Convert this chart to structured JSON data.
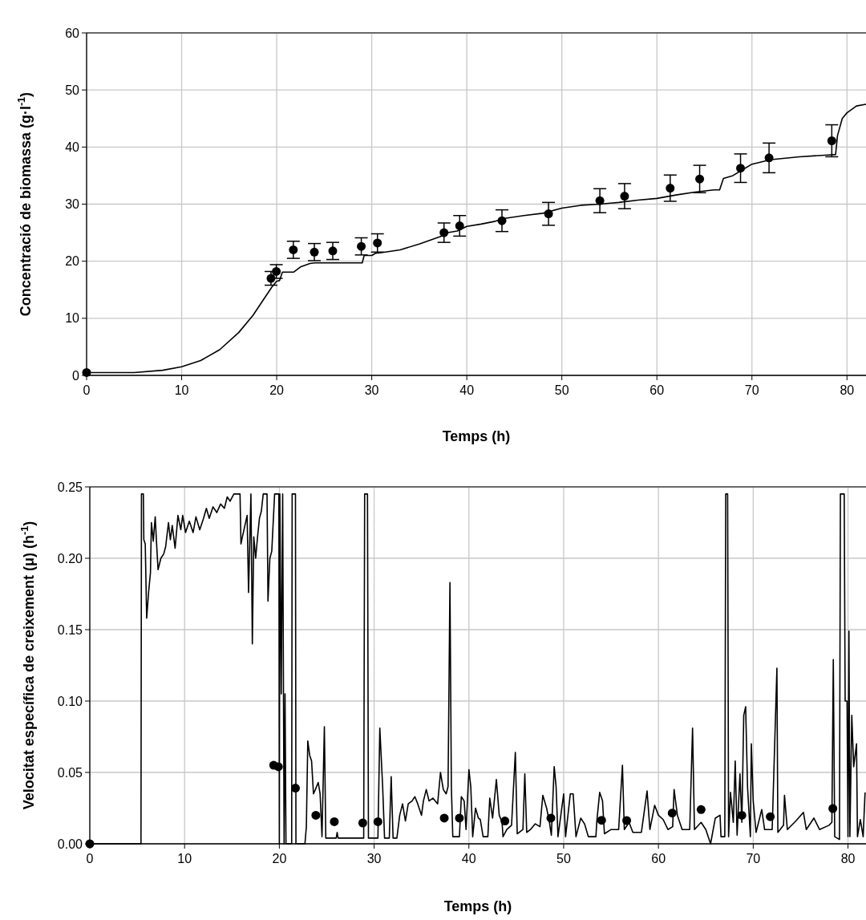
{
  "chart_data": [
    {
      "type": "line",
      "xlabel": "Temps (h)",
      "ylabel": "Concentració de biomassa (g·l$^{-1}$)",
      "xlim": [
        0,
        82
      ],
      "xticks": [
        0,
        10,
        20,
        30,
        40,
        50,
        60,
        70,
        80
      ],
      "ylim": [
        0,
        60
      ],
      "yticks": [
        0,
        10,
        20,
        30,
        40,
        50,
        60
      ],
      "grid": true,
      "series": [
        {
          "type": "line",
          "color": "#000000",
          "x": [
            0,
            5,
            8,
            10,
            12,
            14,
            16,
            17.5,
            18.5,
            19.5,
            20,
            20.3,
            20.6,
            21.8,
            22.5,
            23.5,
            24,
            29,
            29.2,
            30,
            30.4,
            31,
            33,
            35,
            37.5,
            38,
            39,
            40,
            41.5,
            43,
            44,
            46,
            48,
            50,
            52,
            54,
            56,
            58,
            60,
            62,
            64,
            66,
            66.6,
            67,
            68,
            69,
            70,
            72,
            75,
            78,
            78.8,
            79,
            79.5,
            80,
            81,
            82
          ],
          "values": [
            0.5,
            0.5,
            0.9,
            1.5,
            2.6,
            4.5,
            7.5,
            10.5,
            13,
            15.5,
            16.5,
            16.6,
            18.1,
            18.1,
            19,
            19.6,
            19.7,
            19.7,
            21,
            21,
            21.4,
            21.5,
            22,
            23,
            24.5,
            25,
            25.3,
            26.1,
            26.5,
            27,
            27.5,
            28,
            28.4,
            29.3,
            29.8,
            30,
            30.3,
            30.7,
            31,
            31.6,
            32.1,
            32.5,
            32.5,
            34.5,
            35,
            36,
            37,
            37.8,
            38.3,
            38.6,
            38.7,
            42,
            45,
            46,
            47.2,
            47.5
          ]
        },
        {
          "type": "scatter",
          "color": "#000000",
          "marker": "circle",
          "x": [
            0,
            19.4,
            19.96,
            21.75,
            23.96,
            25.9,
            28.9,
            30.6,
            37.6,
            39.25,
            43.7,
            48.6,
            54,
            56.6,
            61.4,
            64.5,
            68.8,
            71.8,
            78.4
          ],
          "values": [
            0.5,
            17,
            18.2,
            22,
            21.6,
            21.8,
            22.6,
            23.2,
            25,
            26.2,
            27.1,
            28.3,
            30.6,
            31.4,
            32.8,
            34.4,
            36.3,
            38.1,
            41.1
          ],
          "errors": [
            null,
            1.2,
            1.2,
            1.5,
            1.5,
            1.5,
            1.5,
            1.6,
            1.7,
            1.8,
            1.9,
            2,
            2.1,
            2.2,
            2.3,
            2.4,
            2.5,
            2.6,
            2.8
          ]
        }
      ]
    },
    {
      "type": "line",
      "xlabel": "Temps (h)",
      "ylabel": "Velocitat específica de creixement (μ) (h$^{-1}$)",
      "xlim": [
        0,
        81.9
      ],
      "xticks": [
        0,
        10,
        20,
        30,
        40,
        50,
        60,
        70,
        80
      ],
      "ylim": [
        0,
        0.25
      ],
      "yticks": [
        {
          "value": 0,
          "label": "0.00"
        },
        {
          "value": 0.05,
          "label": "0.05"
        },
        {
          "value": 0.1,
          "label": "0.10"
        },
        {
          "value": 0.15,
          "label": "0.15"
        },
        {
          "value": 0.2,
          "label": "0.20"
        },
        {
          "value": 0.25,
          "label": "0.25"
        }
      ],
      "grid": true,
      "series": [
        {
          "type": "line",
          "color": "#000000",
          "x": [
            0,
            5.4,
            5.45,
            5.65,
            5.7,
            5.85,
            6,
            6.2,
            6.4,
            6.5,
            6.7,
            6.9,
            7.05,
            7.2,
            7.5,
            7.8,
            8,
            8.3,
            8.5,
            8.7,
            9,
            9.3,
            9.6,
            9.8,
            10.1,
            10.5,
            10.9,
            11.2,
            11.6,
            12,
            12.3,
            12.6,
            13,
            13.4,
            13.8,
            14.2,
            14.5,
            14.8,
            15.2,
            15.85,
            15.95,
            16.1,
            16.6,
            16.75,
            17,
            17.15,
            17.3,
            17.5,
            17.7,
            17.9,
            18.1,
            18.3,
            18.7,
            18.8,
            19,
            19.2,
            19.5,
            19.95,
            20,
            20.05,
            20.2,
            20.35,
            20.5,
            20.6,
            20.7,
            21.3,
            21.35,
            21.7,
            21.75,
            22.7,
            22.85,
            23,
            23.2,
            23.4,
            23.6,
            23.8,
            24.1,
            24.3,
            24.5,
            24.75,
            24.9,
            26,
            26.1,
            26.2,
            28.9,
            29,
            29.3,
            29.4,
            30.4,
            30.6,
            30.9,
            31.1,
            31.6,
            31.8,
            32,
            32.4,
            32.7,
            33,
            33.3,
            33.6,
            34,
            34.3,
            34.6,
            35,
            35.2,
            35.5,
            35.8,
            36.2,
            36.7,
            37,
            37.3,
            37.6,
            37.8,
            38,
            38.15,
            38.3,
            39,
            39.2,
            39.5,
            39.7,
            40,
            40.2,
            40.4,
            40.7,
            41,
            41.2,
            41.5,
            42,
            42.2,
            42.5,
            42.9,
            43.2,
            43.5,
            43.6,
            44,
            44.5,
            44.9,
            45.1,
            45.7,
            45.9,
            46.1,
            46.5,
            47,
            47.5,
            47.8,
            48.2,
            48.5,
            48.7,
            49,
            49.2,
            49.4,
            50,
            50.2,
            50.7,
            51,
            51.3,
            51.8,
            52.2,
            52.6,
            53.4,
            53.5,
            53.8,
            54.1,
            54.3,
            55,
            55.8,
            56.2,
            56.4,
            56.9,
            57.3,
            58.2,
            58.8,
            59.1,
            59.6,
            60,
            60.5,
            61,
            61.5,
            61.65,
            62,
            62.5,
            63.3,
            63.6,
            63.8,
            64.5,
            65,
            65.5,
            66,
            66.5,
            66.6,
            67,
            67.1,
            67.3,
            67.4,
            67.6,
            67.9,
            68.1,
            68.3,
            68.6,
            68.8,
            69,
            69.2,
            69.4,
            69.7,
            69.8,
            70,
            70.3,
            70.9,
            71.2,
            72,
            72.5,
            72.6,
            73.2,
            73.3,
            73.6,
            74.5,
            75.3,
            75.6,
            76.4,
            77,
            78,
            78.3,
            78.45,
            78.6,
            79.1,
            79.2,
            79.6,
            79.7,
            79.9,
            80,
            80.1,
            80.2,
            80.4,
            80.6,
            80.9,
            81,
            81.3,
            81.6,
            81.8
          ],
          "values": [
            0,
            0,
            0.245,
            0.245,
            0.213,
            0.21,
            0.158,
            0.176,
            0.19,
            0.225,
            0.212,
            0.229,
            0.21,
            0.192,
            0.2,
            0.203,
            0.208,
            0.225,
            0.213,
            0.223,
            0.207,
            0.23,
            0.22,
            0.23,
            0.218,
            0.226,
            0.218,
            0.229,
            0.22,
            0.228,
            0.235,
            0.228,
            0.236,
            0.232,
            0.238,
            0.235,
            0.243,
            0.24,
            0.245,
            0.245,
            0.21,
            0.215,
            0.23,
            0.176,
            0.245,
            0.14,
            0.215,
            0.2,
            0.215,
            0.228,
            0.233,
            0.245,
            0.245,
            0.17,
            0.2,
            0.205,
            0.245,
            0.245,
            0,
            0.245,
            0.105,
            0.245,
            0,
            0.105,
            0,
            0,
            0.245,
            0.245,
            0,
            0,
            0.012,
            0.072,
            0.062,
            0.058,
            0.035,
            0.038,
            0.043,
            0.035,
            0.005,
            0.082,
            0.004,
            0.004,
            0.008,
            0.004,
            0.004,
            0.245,
            0.245,
            0.004,
            0.004,
            0.081,
            0.04,
            0.004,
            0.004,
            0.047,
            0.004,
            0.004,
            0.02,
            0.028,
            0.016,
            0.028,
            0.03,
            0.033,
            0.028,
            0.02,
            0.03,
            0.038,
            0.03,
            0.032,
            0.028,
            0.05,
            0.038,
            0.035,
            0.04,
            0.183,
            0.04,
            0.005,
            0.005,
            0.033,
            0.03,
            0.01,
            0.052,
            0.04,
            0.005,
            0.025,
            0.018,
            0.017,
            0.005,
            0.005,
            0.032,
            0.018,
            0.045,
            0.02,
            0.015,
            0.005,
            0.01,
            0.013,
            0.064,
            0.007,
            0.01,
            0.049,
            0.008,
            0.01,
            0.014,
            0.012,
            0.034,
            0.025,
            0.015,
            0.006,
            0.054,
            0.04,
            0.005,
            0.035,
            0.005,
            0.035,
            0.035,
            0.005,
            0.018,
            0.014,
            0.005,
            0.005,
            0.016,
            0.036,
            0.03,
            0.007,
            0.01,
            0.01,
            0.055,
            0.01,
            0.015,
            0.008,
            0.008,
            0.037,
            0.01,
            0.027,
            0.02,
            0.017,
            0.01,
            0.012,
            0.038,
            0.02,
            0.01,
            0.01,
            0.081,
            0.01,
            0.015,
            0.01,
            0,
            0.018,
            0.02,
            0.005,
            0.005,
            0.245,
            0.245,
            0.005,
            0.036,
            0.015,
            0.058,
            0.006,
            0.049,
            0.015,
            0.09,
            0.096,
            0.04,
            0.005,
            0.07,
            0.03,
            0.008,
            0.024,
            0.01,
            0.01,
            0.123,
            0.008,
            0.013,
            0.034,
            0.01,
            0.016,
            0.022,
            0.01,
            0.018,
            0.01,
            0.013,
            0.015,
            0.129,
            0.005,
            0.003,
            0.245,
            0.245,
            0.1,
            0.1,
            0.005,
            0.149,
            0.005,
            0.09,
            0.054,
            0.07,
            0.005,
            0.017,
            0.005,
            0.036
          ]
        },
        {
          "type": "scatter",
          "color": "#000000",
          "marker": "circle",
          "x": [
            0,
            19.4,
            19.9,
            21.7,
            23.85,
            25.8,
            28.8,
            30.4,
            37.4,
            39,
            43.8,
            48.65,
            54,
            56.65,
            61.45,
            64.5,
            68.8,
            71.8,
            78.4
          ],
          "values": [
            0,
            0.055,
            0.054,
            0.039,
            0.02,
            0.0155,
            0.0146,
            0.0155,
            0.018,
            0.018,
            0.016,
            0.018,
            0.0165,
            0.0163,
            0.0215,
            0.024,
            0.02,
            0.019,
            0.0247
          ]
        }
      ]
    }
  ]
}
